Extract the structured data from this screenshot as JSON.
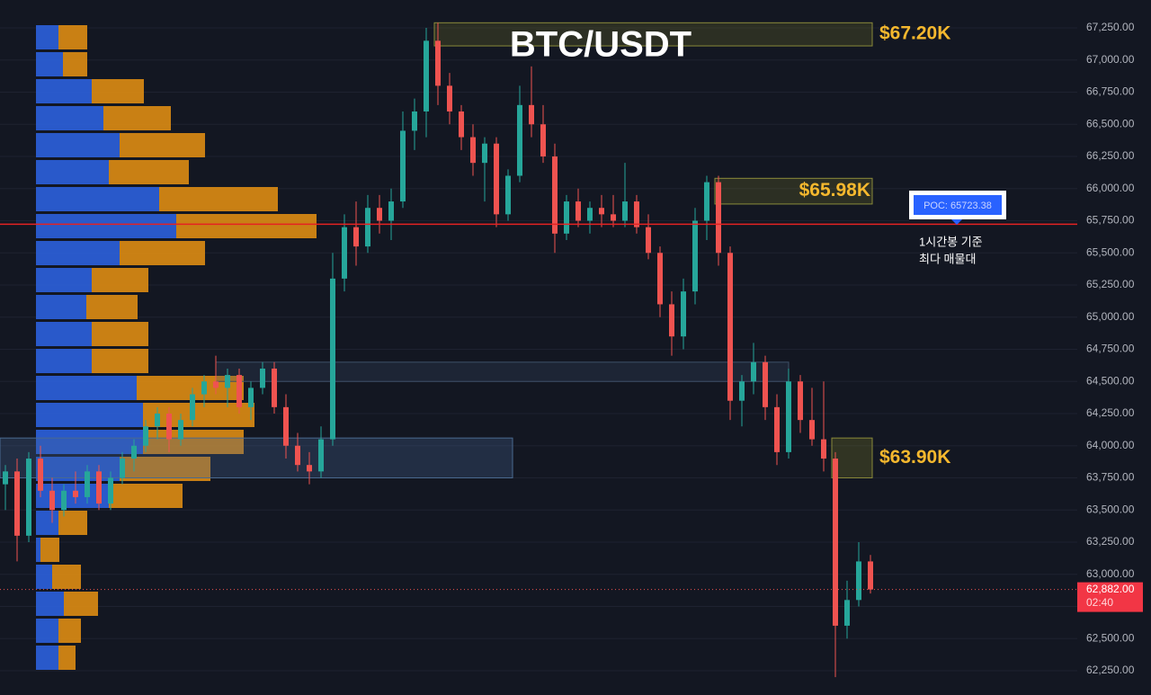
{
  "chart_data": {
    "type": "candlestick",
    "title": "BTC/USDT",
    "up_color": "#26a69a",
    "down_color": "#ef5350",
    "ylim": [
      62061,
      67467
    ],
    "yticks": [
      {
        "value": 62250,
        "label": "62,250.00"
      },
      {
        "value": 62500,
        "label": "62,500.00"
      },
      {
        "value": 62750,
        "label": "62,750.00"
      },
      {
        "value": 63000,
        "label": "63,000.00"
      },
      {
        "value": 63250,
        "label": "63,250.00"
      },
      {
        "value": 63500,
        "label": "63,500.00"
      },
      {
        "value": 63750,
        "label": "63,750.00"
      },
      {
        "value": 64000,
        "label": "64,000.00"
      },
      {
        "value": 64250,
        "label": "64,250.00"
      },
      {
        "value": 64500,
        "label": "64,500.00"
      },
      {
        "value": 64750,
        "label": "64,750.00"
      },
      {
        "value": 65000,
        "label": "65,000.00"
      },
      {
        "value": 65250,
        "label": "65,250.00"
      },
      {
        "value": 65500,
        "label": "65,500.00"
      },
      {
        "value": 65750,
        "label": "65,750.00"
      },
      {
        "value": 66000,
        "label": "66,000.00"
      },
      {
        "value": 66250,
        "label": "66,250.00"
      },
      {
        "value": 66500,
        "label": "66,500.00"
      },
      {
        "value": 66750,
        "label": "66,750.00"
      },
      {
        "value": 67000,
        "label": "67,000.00"
      },
      {
        "value": 67250,
        "label": "67,250.00"
      }
    ],
    "grid": true,
    "open": [
      63700,
      63800,
      63300,
      63900,
      63650,
      63500,
      63650,
      63600,
      63800,
      63550,
      63750,
      63900,
      64000,
      64150,
      64250,
      64050,
      64200,
      64400,
      64500,
      64450,
      64550,
      64300,
      64450,
      64600,
      64300,
      64000,
      63850,
      63800,
      64050,
      65300,
      65700,
      65550,
      65850,
      65750,
      65900,
      66450,
      66600,
      67150,
      66800,
      66600,
      66400,
      66200,
      66350,
      65800,
      66100,
      66650,
      66500,
      66250,
      65650,
      65900,
      65750,
      65850,
      65800,
      65750,
      65900,
      65700,
      65500,
      65100,
      64850,
      65200,
      65750,
      66050,
      65500,
      64350,
      64500,
      64650,
      64300,
      63950,
      64500,
      64200,
      64050,
      63900,
      62600,
      62800,
      63100
    ],
    "high": [
      63850,
      63900,
      63950,
      64000,
      63750,
      63700,
      63800,
      63850,
      63850,
      63800,
      63950,
      64050,
      64200,
      64300,
      64300,
      64250,
      64450,
      64550,
      64700,
      64600,
      64600,
      64500,
      64650,
      64650,
      64400,
      64100,
      63950,
      64150,
      65500,
      65800,
      65900,
      65950,
      65950,
      66000,
      66600,
      66700,
      67250,
      67290,
      66900,
      66650,
      66500,
      66400,
      66400,
      66150,
      66800,
      66950,
      66650,
      66350,
      65950,
      66000,
      65900,
      65950,
      65950,
      66200,
      65950,
      65800,
      65550,
      65200,
      65300,
      65850,
      66100,
      66100,
      65550,
      64550,
      64800,
      64700,
      64400,
      64600,
      64550,
      64450,
      64500,
      63950,
      62950,
      63250,
      63150
    ],
    "low": [
      63500,
      63100,
      63250,
      63600,
      63400,
      63450,
      63550,
      63550,
      63500,
      63500,
      63700,
      63800,
      63950,
      64050,
      63950,
      64000,
      64150,
      64300,
      64400,
      64300,
      64250,
      64200,
      64400,
      64250,
      63900,
      63800,
      63700,
      63750,
      64000,
      65200,
      65400,
      65500,
      65650,
      65600,
      65850,
      66300,
      66400,
      66650,
      66500,
      66300,
      66100,
      65900,
      65700,
      65750,
      66050,
      66400,
      66200,
      65500,
      65600,
      65700,
      65650,
      65700,
      65700,
      65700,
      65650,
      65450,
      65000,
      64700,
      64750,
      65100,
      65600,
      65400,
      64200,
      64150,
      64400,
      64200,
      63850,
      63900,
      64100,
      64000,
      63800,
      62200,
      62500,
      62750,
      62850
    ],
    "close": [
      63800,
      63300,
      63900,
      63650,
      63500,
      63650,
      63600,
      63800,
      63550,
      63750,
      63900,
      64000,
      64150,
      64250,
      64050,
      64200,
      64400,
      64500,
      64450,
      64550,
      64300,
      64450,
      64600,
      64300,
      64000,
      63850,
      63800,
      64050,
      65300,
      65700,
      65550,
      65850,
      65750,
      65900,
      66450,
      66600,
      67150,
      66800,
      66600,
      66400,
      66200,
      66350,
      65800,
      66100,
      66650,
      66500,
      66250,
      65650,
      65900,
      65750,
      65850,
      65800,
      65750,
      65900,
      65700,
      65500,
      65100,
      64850,
      65200,
      65750,
      66050,
      65500,
      64350,
      64500,
      64650,
      64300,
      63950,
      64500,
      64200,
      64050,
      63900,
      62600,
      62800,
      63100,
      62882
    ],
    "profile": {
      "buy_color": "#2b5fd9",
      "sell_color": "#d98a14",
      "buy": [
        25,
        30,
        62,
        75,
        93,
        81,
        137,
        156,
        93,
        62,
        56,
        62,
        62,
        112,
        119,
        119,
        93,
        81,
        25,
        5,
        18,
        31,
        25,
        25
      ],
      "sell": [
        32,
        27,
        58,
        75,
        95,
        89,
        132,
        156,
        95,
        63,
        57,
        63,
        63,
        119,
        124,
        112,
        101,
        82,
        32,
        21,
        32,
        38,
        25,
        19
      ]
    },
    "zones": [
      {
        "top": 67290,
        "bottom": 67110,
        "label": "$67.20K"
      },
      {
        "top": 66080,
        "bottom": 65880,
        "label": "$65.98K"
      },
      {
        "top": 64650,
        "bottom": 64500
      },
      {
        "top": 64060,
        "bottom": 63750,
        "label": "$63.90K"
      }
    ],
    "poc": {
      "value": 65723.38,
      "label": "POC: 65723.38",
      "note": [
        "1시간봉 기준",
        "최다 매물대"
      ]
    },
    "last_price": {
      "value": 62882,
      "label": "62,882.00",
      "countdown": "02:40"
    }
  }
}
